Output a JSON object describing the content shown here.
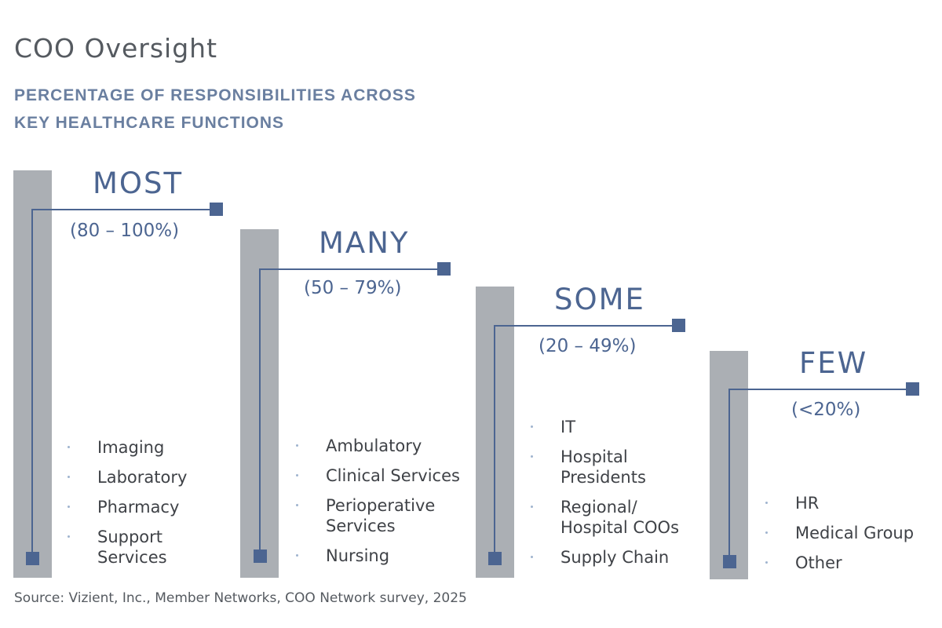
{
  "title": "COO Oversight",
  "subtitle": "PERCENTAGE OF RESPONSIBILITIES ACROSS KEY HEALTHCARE FUNCTIONS",
  "tiers": [
    {
      "label": "MOST",
      "range": "(80 – 100%)",
      "items": [
        "Imaging",
        "Laboratory",
        "Pharmacy",
        "Support Services"
      ]
    },
    {
      "label": "MANY",
      "range": "(50 – 79%)",
      "items": [
        "Ambulatory",
        "Clinical Services",
        "Perioperative Services",
        "Nursing"
      ]
    },
    {
      "label": "SOME",
      "range": "(20 – 49%)",
      "items": [
        "IT",
        "Hospital Presidents",
        "Regional/ Hospital COOs",
        "Supply Chain"
      ]
    },
    {
      "label": "FEW",
      "range": "(<20%)",
      "items": [
        "HR",
        "Medical Group",
        "Other"
      ]
    }
  ],
  "source": "Source: Vizient, Inc., Member Networks, COO Network survey, 2025",
  "colors": {
    "bar": "#abafb4",
    "accent": "#4c6591",
    "subtitle": "#6a7fa0"
  }
}
